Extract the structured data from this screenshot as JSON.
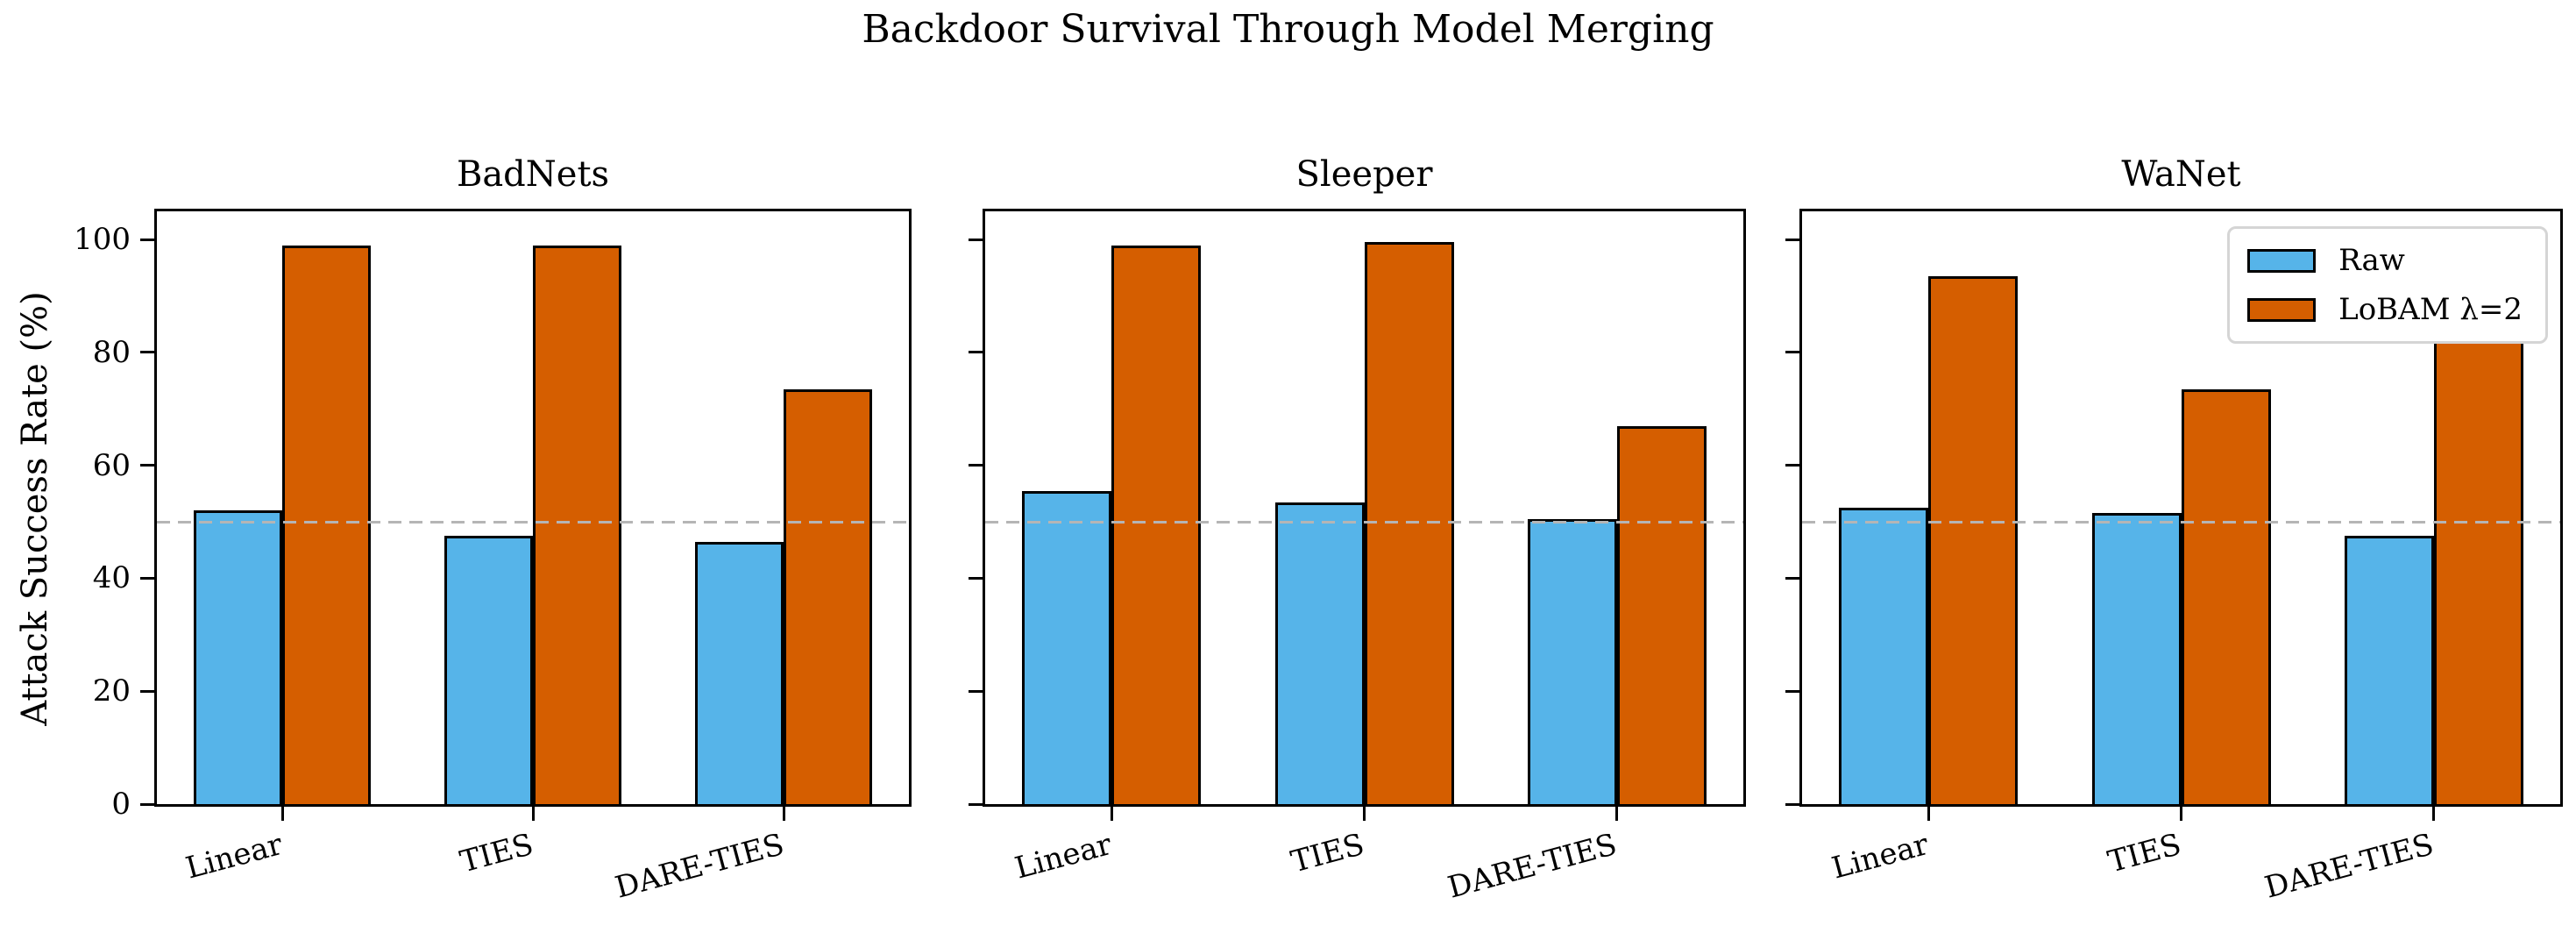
{
  "title": "Backdoor Survival Through Model Merging",
  "ylabel": "Attack Success Rate (%)",
  "colors": {
    "raw": "#56B4E9",
    "lobam": "#D55E00",
    "baseline": "#b5b5b5",
    "edge": "#000000"
  },
  "legend": {
    "location": "upper right of WaNet panel",
    "items": [
      {
        "label": "Raw",
        "color": "#56B4E9"
      },
      {
        "label": "LoBAM λ=2",
        "color": "#D55E00"
      }
    ]
  },
  "chart_data": [
    {
      "type": "bar",
      "title": "BadNets",
      "categories": [
        "Linear",
        "TIES",
        "DARE-TIES"
      ],
      "series": [
        {
          "name": "Raw",
          "color": "#56B4E9",
          "values": [
            52,
            47.5,
            46.5
          ]
        },
        {
          "name": "LoBAM λ=2",
          "color": "#D55E00",
          "values": [
            99,
            99,
            73.5
          ]
        }
      ],
      "ylim": [
        0,
        105
      ],
      "yticks": [
        0,
        20,
        40,
        60,
        80,
        100
      ],
      "hline": 50,
      "show_ytick_labels": true,
      "grid": false
    },
    {
      "type": "bar",
      "title": "Sleeper",
      "categories": [
        "Linear",
        "TIES",
        "DARE-TIES"
      ],
      "series": [
        {
          "name": "Raw",
          "color": "#56B4E9",
          "values": [
            55.5,
            53.5,
            50.5
          ]
        },
        {
          "name": "LoBAM λ=2",
          "color": "#D55E00",
          "values": [
            99,
            99.5,
            67
          ]
        }
      ],
      "ylim": [
        0,
        105
      ],
      "yticks": [
        0,
        20,
        40,
        60,
        80,
        100
      ],
      "hline": 50,
      "show_ytick_labels": false,
      "grid": false
    },
    {
      "type": "bar",
      "title": "WaNet",
      "categories": [
        "Linear",
        "TIES",
        "DARE-TIES"
      ],
      "series": [
        {
          "name": "Raw",
          "color": "#56B4E9",
          "values": [
            52.5,
            51.5,
            47.5
          ]
        },
        {
          "name": "LoBAM λ=2",
          "color": "#D55E00",
          "values": [
            93.5,
            73.5,
            82
          ]
        }
      ],
      "ylim": [
        0,
        105
      ],
      "yticks": [
        0,
        20,
        40,
        60,
        80,
        100
      ],
      "hline": 50,
      "show_ytick_labels": false,
      "legend_shown": true,
      "grid": false
    }
  ]
}
